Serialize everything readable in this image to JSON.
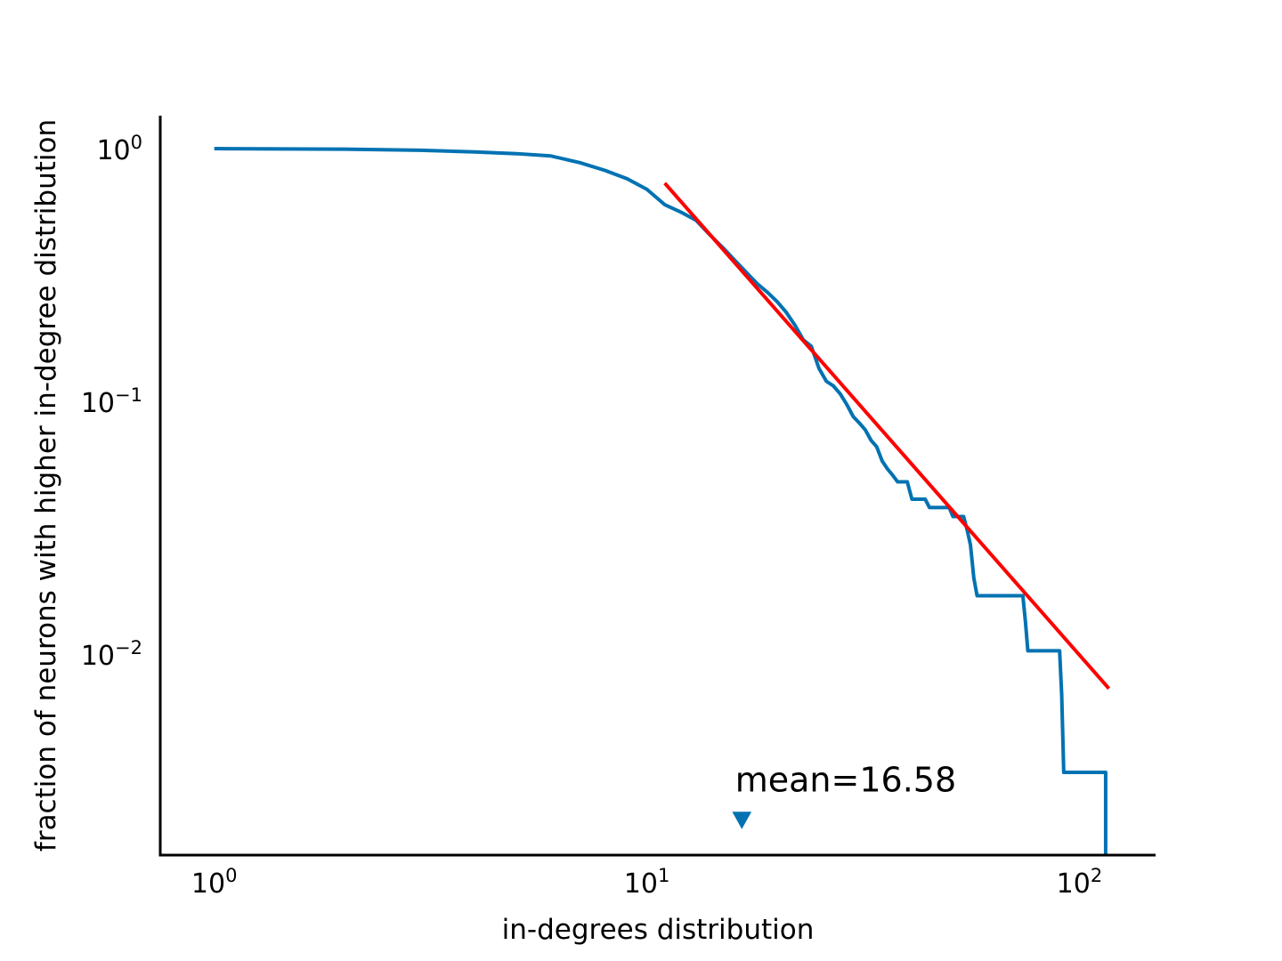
{
  "chart_data": {
    "type": "line",
    "title": "",
    "xlabel": "in-degrees distribution",
    "ylabel": "fraction of neurons with higher in-degree distribution",
    "xscale": "log",
    "yscale": "log",
    "xlim": [
      0.75,
      150
    ],
    "ylim": [
      0.0016,
      1.35
    ],
    "grid": false,
    "legend": "none",
    "x_ticks": [
      {
        "value": 1,
        "base": "10",
        "exp": "0"
      },
      {
        "value": 10,
        "base": "10",
        "exp": "1"
      },
      {
        "value": 100,
        "base": "10",
        "exp": "2"
      }
    ],
    "y_ticks": [
      {
        "value": 1,
        "base": "10",
        "exp": "0"
      },
      {
        "value": 0.1,
        "base": "10",
        "exp": "−1"
      },
      {
        "value": 0.01,
        "base": "10",
        "exp": "−2"
      }
    ],
    "series": [
      {
        "kind": "ccdf",
        "color": "#0072b2",
        "points": [
          [
            1,
            1.0
          ],
          [
            2,
            0.995
          ],
          [
            3,
            0.985
          ],
          [
            4,
            0.97
          ],
          [
            5,
            0.955
          ],
          [
            6,
            0.935
          ],
          [
            7,
            0.88
          ],
          [
            8,
            0.82
          ],
          [
            9,
            0.76
          ],
          [
            10,
            0.69
          ],
          [
            11,
            0.6
          ],
          [
            12,
            0.56
          ],
          [
            13,
            0.52
          ],
          [
            14,
            0.455
          ],
          [
            15,
            0.405
          ],
          [
            16,
            0.36
          ],
          [
            17,
            0.323
          ],
          [
            18,
            0.292
          ],
          [
            19,
            0.27
          ],
          [
            20,
            0.248
          ],
          [
            21,
            0.225
          ],
          [
            22,
            0.2
          ],
          [
            23,
            0.175
          ],
          [
            24,
            0.165
          ],
          [
            25,
            0.135
          ],
          [
            26,
            0.12
          ],
          [
            27,
            0.115
          ],
          [
            28,
            0.107
          ],
          [
            29,
            0.097
          ],
          [
            30,
            0.087
          ],
          [
            31,
            0.082
          ],
          [
            32,
            0.077
          ],
          [
            33,
            0.07
          ],
          [
            34,
            0.066
          ],
          [
            35,
            0.058
          ],
          [
            36,
            0.054
          ],
          [
            37,
            0.051
          ],
          [
            38,
            0.048
          ],
          [
            39,
            0.048
          ],
          [
            40,
            0.048
          ],
          [
            41,
            0.041
          ],
          [
            42,
            0.041
          ],
          [
            43,
            0.041
          ],
          [
            44,
            0.041
          ],
          [
            45,
            0.038
          ],
          [
            46,
            0.038
          ],
          [
            47,
            0.038
          ],
          [
            48,
            0.038
          ],
          [
            49,
            0.038
          ],
          [
            50,
            0.038
          ],
          [
            51,
            0.035
          ],
          [
            52,
            0.035
          ],
          [
            53,
            0.035
          ],
          [
            54,
            0.035
          ],
          [
            55,
            0.031
          ],
          [
            56,
            0.027
          ],
          [
            57,
            0.02
          ],
          [
            58,
            0.017
          ],
          [
            59,
            0.017
          ],
          [
            60,
            0.017
          ],
          [
            61,
            0.017
          ],
          [
            62,
            0.017
          ],
          [
            63,
            0.017
          ],
          [
            64,
            0.017
          ],
          [
            65,
            0.017
          ],
          [
            66,
            0.017
          ],
          [
            67,
            0.017
          ],
          [
            68,
            0.017
          ],
          [
            69,
            0.017
          ],
          [
            70,
            0.017
          ],
          [
            71,
            0.017
          ],
          [
            72,
            0.017
          ],
          [
            73,
            0.017
          ],
          [
            74,
            0.017
          ],
          [
            75,
            0.0135
          ],
          [
            76,
            0.0103
          ],
          [
            90,
            0.0103
          ],
          [
            91,
            0.0069
          ],
          [
            92,
            0.0034
          ],
          [
            115,
            0.0034
          ],
          [
            115,
            0.0016
          ]
        ]
      },
      {
        "kind": "power-law fit",
        "color": "#ff0000",
        "points": [
          [
            11,
            0.73
          ],
          [
            117,
            0.0073
          ]
        ]
      }
    ],
    "mean_marker": {
      "value": 16.58,
      "y": 0.0022,
      "color": "#0072b2",
      "shape": "triangle-down"
    },
    "annotations": [
      {
        "text": "mean=16.58",
        "x": 16.0,
        "y": 0.0032
      }
    ]
  }
}
